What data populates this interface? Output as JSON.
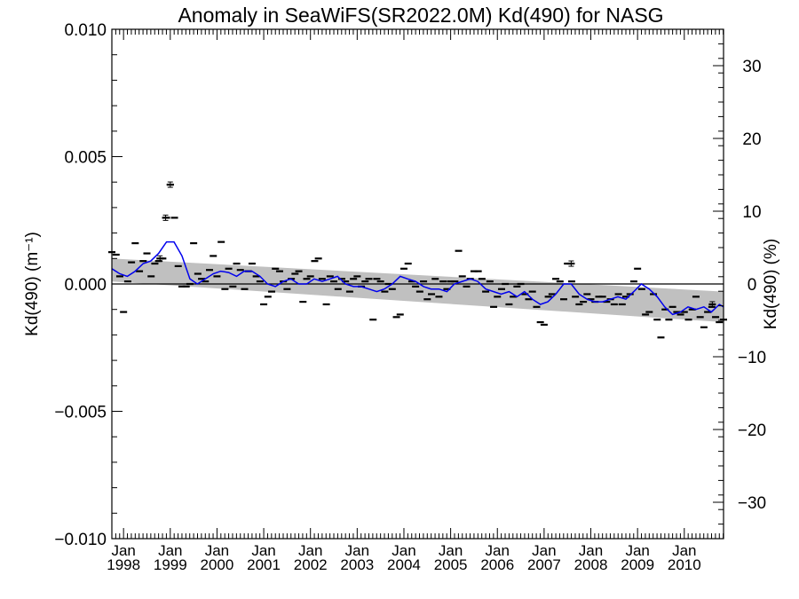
{
  "chart_data": {
    "type": "scatter",
    "title": "Anomaly in SeaWiFS(SR2022.0M) Kd(490) for NASG",
    "ylabel": "Kd(490) (m⁻¹)",
    "y2label": "Kd(490) (%)",
    "ylim": [
      -0.01,
      0.01
    ],
    "y2lim": [
      -35,
      35
    ],
    "yticks": [
      "0.010",
      "0.005",
      "0.000",
      "−0.005",
      "−0.010"
    ],
    "y2ticks": [
      "30",
      "20",
      "10",
      "0",
      "−10",
      "−20",
      "−30"
    ],
    "xlim": [
      1997.75,
      2010.84
    ],
    "xtick_labels": [
      {
        "month": "Jan",
        "year": "1998",
        "x": 1998.0
      },
      {
        "month": "Jan",
        "year": "1999",
        "x": 1999.0
      },
      {
        "month": "Jan",
        "year": "2000",
        "x": 2000.0
      },
      {
        "month": "Jan",
        "year": "2001",
        "x": 2001.0
      },
      {
        "month": "Jan",
        "year": "2002",
        "x": 2002.0
      },
      {
        "month": "Jan",
        "year": "2003",
        "x": 2003.0
      },
      {
        "month": "Jan",
        "year": "2004",
        "x": 2004.0
      },
      {
        "month": "Jan",
        "year": "2005",
        "x": 2005.0
      },
      {
        "month": "Jan",
        "year": "2006",
        "x": 2006.0
      },
      {
        "month": "Jan",
        "year": "2007",
        "x": 2007.0
      },
      {
        "month": "Jan",
        "year": "2008",
        "x": 2008.0
      },
      {
        "month": "Jan",
        "year": "2009",
        "x": 2009.0
      },
      {
        "month": "Jan",
        "year": "2010",
        "x": 2010.0
      }
    ],
    "trend_band": {
      "x": [
        1997.75,
        2010.84
      ],
      "upper": [
        0.001,
        -0.0003
      ],
      "lower": [
        0.0001,
        -0.0015
      ]
    },
    "zero_line": 0.0,
    "series": [
      {
        "kind": "monthly_anomaly_points",
        "color": "#000000",
        "x": [
          1997.75,
          1997.84,
          1997.92,
          1998.0,
          1998.09,
          1998.17,
          1998.25,
          1998.34,
          1998.42,
          1998.5,
          1998.59,
          1998.67,
          1998.75,
          1998.84,
          1998.92,
          1999.0,
          1999.09,
          1999.17,
          1999.25,
          1999.34,
          1999.42,
          1999.5,
          1999.59,
          1999.67,
          1999.75,
          1999.84,
          1999.92,
          2000.0,
          2000.09,
          2000.17,
          2000.25,
          2000.34,
          2000.42,
          2000.5,
          2000.59,
          2000.67,
          2000.75,
          2000.84,
          2000.92,
          2001.0,
          2001.09,
          2001.17,
          2001.25,
          2001.34,
          2001.42,
          2001.5,
          2001.59,
          2001.67,
          2001.75,
          2001.84,
          2001.92,
          2002.0,
          2002.09,
          2002.17,
          2002.25,
          2002.34,
          2002.42,
          2002.5,
          2002.59,
          2002.67,
          2002.75,
          2002.84,
          2002.92,
          2003.0,
          2003.09,
          2003.17,
          2003.25,
          2003.34,
          2003.42,
          2003.5,
          2003.59,
          2003.67,
          2003.75,
          2003.84,
          2003.92,
          2004.0,
          2004.09,
          2004.17,
          2004.25,
          2004.34,
          2004.42,
          2004.5,
          2004.59,
          2004.67,
          2004.75,
          2004.84,
          2004.92,
          2005.0,
          2005.09,
          2005.17,
          2005.25,
          2005.34,
          2005.42,
          2005.5,
          2005.59,
          2005.67,
          2005.75,
          2005.84,
          2005.92,
          2006.0,
          2006.09,
          2006.17,
          2006.25,
          2006.34,
          2006.42,
          2006.5,
          2006.59,
          2006.67,
          2006.75,
          2006.84,
          2006.92,
          2007.0,
          2007.09,
          2007.17,
          2007.25,
          2007.34,
          2007.42,
          2007.5,
          2007.59,
          2007.67,
          2007.75,
          2007.84,
          2007.92,
          2008.0,
          2008.09,
          2008.17,
          2008.25,
          2008.34,
          2008.42,
          2008.5,
          2008.59,
          2008.67,
          2008.75,
          2008.84,
          2008.92,
          2009.0,
          2009.09,
          2009.17,
          2009.25,
          2009.34,
          2009.42,
          2009.5,
          2009.59,
          2009.67,
          2009.75,
          2009.84,
          2009.92,
          2010.0,
          2010.09,
          2010.17,
          2010.25,
          2010.34,
          2010.42,
          2010.5,
          2010.59,
          2010.67,
          2010.75,
          2010.84
        ],
        "y": [
          0.00125,
          0.00115,
          0.0003,
          -0.0011,
          0.0001,
          0.00085,
          0.0016,
          0.0005,
          0.0009,
          0.0012,
          0.0003,
          0.0008,
          0.0009,
          0.001,
          0.0026,
          0.0039,
          0.0026,
          0.0007,
          -0.0001,
          -0.0001,
          0.0,
          0.0016,
          0.0004,
          0.0002,
          0.0001,
          0.00055,
          0.0011,
          0.0003,
          0.00165,
          -0.0002,
          0.0006,
          -0.0001,
          0.0008,
          0.00055,
          -0.0002,
          0.0005,
          0.0008,
          0.0003,
          0.0001,
          -0.0008,
          -0.0005,
          -0.0003,
          0.0006,
          0.0005,
          0.0001,
          -0.0002,
          0.0002,
          0.0004,
          0.0005,
          -0.0007,
          0.0002,
          0.0003,
          0.0009,
          0.001,
          0.0002,
          -0.0008,
          0.0003,
          0.0001,
          -0.0002,
          0.0002,
          0.0001,
          -0.0003,
          0.0002,
          0.0003,
          -0.0001,
          0.0001,
          0.0002,
          -0.0014,
          0.0002,
          0.0001,
          -0.0003,
          0.0,
          -0.0002,
          -0.0013,
          -0.0012,
          0.0006,
          0.0008,
          0.0001,
          -0.0001,
          -0.0003,
          0.0001,
          -0.0006,
          -0.0004,
          0.0002,
          -0.0005,
          0.0001,
          -0.0002,
          0.0001,
          0.0001,
          0.0013,
          0.0003,
          -0.0001,
          0.0002,
          0.0005,
          0.0005,
          0.0002,
          -0.0003,
          0.0001,
          -0.0009,
          -0.0005,
          -0.0002,
          0.0,
          -0.0008,
          -0.0005,
          -0.0001,
          0.0,
          -0.0004,
          -0.0006,
          -0.0003,
          -0.0009,
          -0.0015,
          -0.0016,
          -0.0005,
          -0.0004,
          0.0002,
          0.0001,
          -0.0006,
          0.0008,
          0.0001,
          -0.0005,
          -0.0008,
          -0.0007,
          -0.0004,
          -0.0006,
          -0.0007,
          -0.0005,
          -0.0005,
          -0.0007,
          -0.0006,
          -0.0008,
          -0.0004,
          -0.0008,
          -0.0005,
          -0.0004,
          0.0001,
          0.0006,
          -0.0002,
          -0.0012,
          -0.0011,
          -0.0004,
          -0.0014,
          -0.0021,
          -0.001,
          -0.0014,
          -0.0009,
          -0.0011,
          -0.0012,
          -0.0011,
          -0.0014,
          -0.001,
          -0.0005,
          -0.0013,
          -0.0017,
          -0.0011,
          -0.0009,
          -0.0013,
          -0.0015,
          -0.0014
        ]
      },
      {
        "kind": "running_mean",
        "color": "#0000ee",
        "x": [
          1997.75,
          1997.92,
          1998.08,
          1998.25,
          1998.42,
          1998.58,
          1998.75,
          1998.92,
          1999.08,
          1999.25,
          1999.42,
          1999.58,
          1999.75,
          1999.92,
          2000.08,
          2000.25,
          2000.42,
          2000.58,
          2000.75,
          2000.92,
          2001.08,
          2001.25,
          2001.42,
          2001.58,
          2001.75,
          2001.92,
          2002.08,
          2002.25,
          2002.42,
          2002.58,
          2002.75,
          2002.92,
          2003.08,
          2003.25,
          2003.42,
          2003.58,
          2003.75,
          2003.92,
          2004.08,
          2004.25,
          2004.42,
          2004.58,
          2004.75,
          2004.92,
          2005.08,
          2005.25,
          2005.42,
          2005.58,
          2005.75,
          2005.92,
          2006.08,
          2006.25,
          2006.42,
          2006.58,
          2006.75,
          2006.92,
          2007.08,
          2007.25,
          2007.42,
          2007.58,
          2007.75,
          2007.92,
          2008.08,
          2008.25,
          2008.42,
          2008.58,
          2008.75,
          2008.92,
          2009.08,
          2009.25,
          2009.42,
          2009.58,
          2009.75,
          2009.92,
          2010.08,
          2010.25,
          2010.42,
          2010.58,
          2010.75,
          2010.84
        ],
        "y": [
          0.0006,
          0.0004,
          0.0003,
          0.0005,
          0.0008,
          0.0009,
          0.0012,
          0.00165,
          0.00165,
          0.0011,
          0.0002,
          0.0,
          0.0002,
          0.0004,
          0.0005,
          0.00045,
          0.0003,
          0.0005,
          0.0005,
          0.0003,
          0.0,
          -0.0001,
          0.0001,
          0.0002,
          0.0,
          0.0,
          0.0002,
          0.0001,
          0.0002,
          0.0003,
          0.0,
          -0.0001,
          -0.0001,
          -0.0002,
          -0.0003,
          -0.0002,
          0.0,
          0.0003,
          0.0002,
          0.0001,
          -0.0001,
          -0.0002,
          -0.0002,
          -0.0003,
          0.0,
          0.0001,
          0.0002,
          0.0001,
          -0.0002,
          -0.0003,
          -0.0004,
          -0.0003,
          -0.0005,
          -0.0003,
          -0.0006,
          -0.0008,
          -0.0007,
          -0.0004,
          0.0,
          0.0,
          -0.0004,
          -0.0006,
          -0.0007,
          -0.0007,
          -0.0006,
          -0.0005,
          -0.0006,
          -0.0003,
          0.0,
          -0.0002,
          -0.0005,
          -0.0009,
          -0.0012,
          -0.0011,
          -0.0009,
          -0.001,
          -0.0009,
          -0.0011,
          -0.0008,
          -0.0009
        ]
      }
    ],
    "error_bar_points": [
      {
        "x": 1999.0,
        "y": 0.0039
      },
      {
        "x": 1998.9,
        "y": 0.0026
      },
      {
        "x": 1998.78,
        "y": 0.001
      },
      {
        "x": 2007.58,
        "y": 0.0008
      },
      {
        "x": 2010.6,
        "y": -0.0008
      }
    ],
    "grid": false,
    "legend": "none"
  }
}
